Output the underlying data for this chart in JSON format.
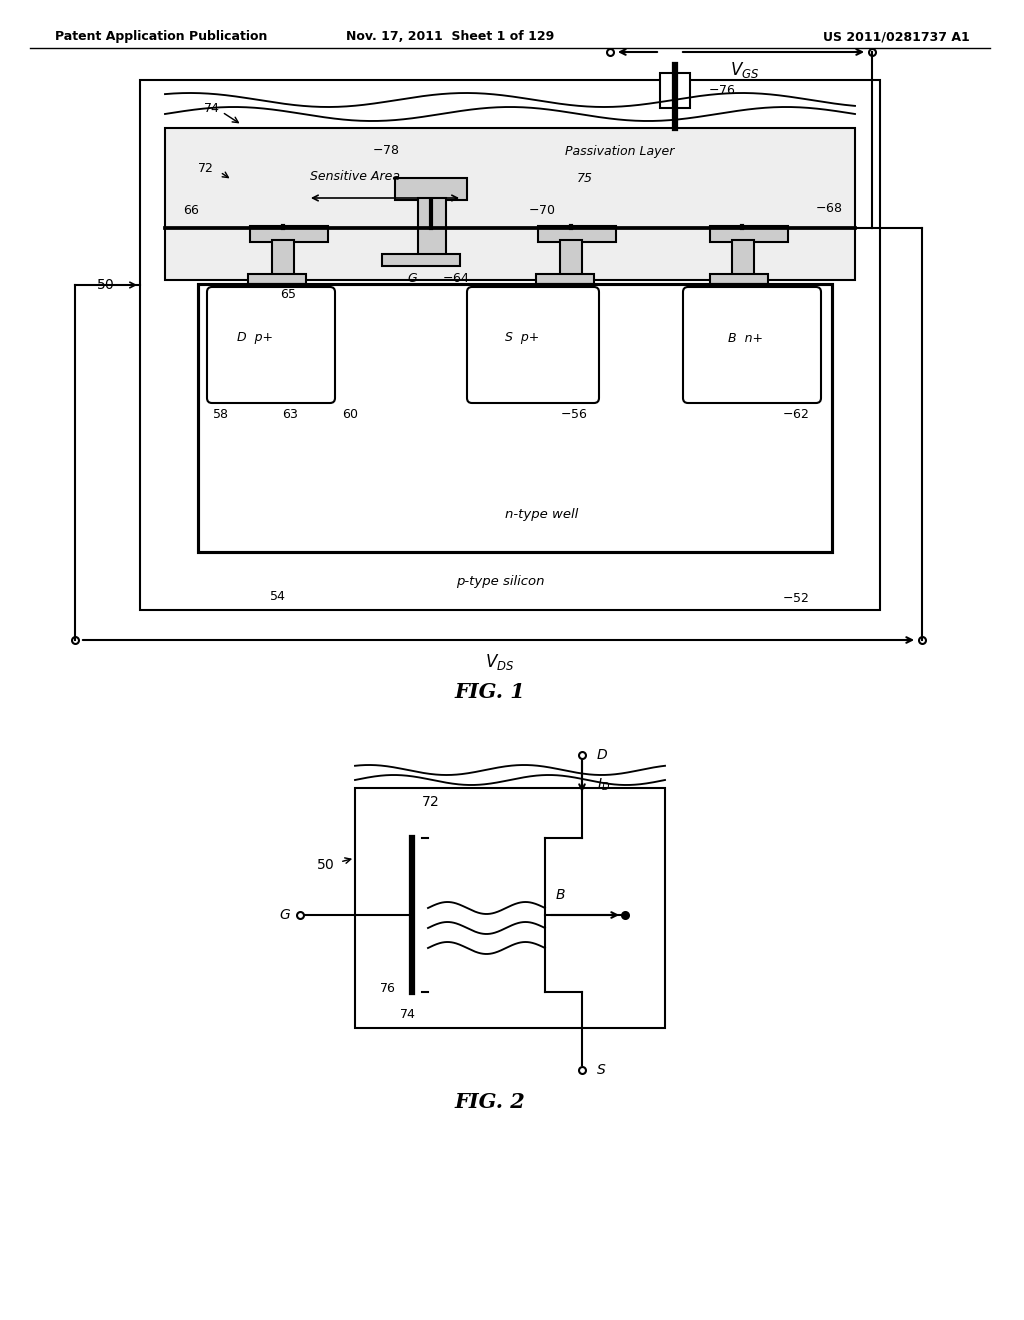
{
  "fig_width": 10.24,
  "fig_height": 13.2,
  "bg_color": "#ffffff",
  "header_left": "Patent Application Publication",
  "header_mid": "Nov. 17, 2011  Sheet 1 of 129",
  "header_right": "US 2011/0281737 A1",
  "fig1_title": "FIG. 1",
  "fig2_title": "FIG. 2",
  "line_color": "#000000",
  "lw": 1.5
}
